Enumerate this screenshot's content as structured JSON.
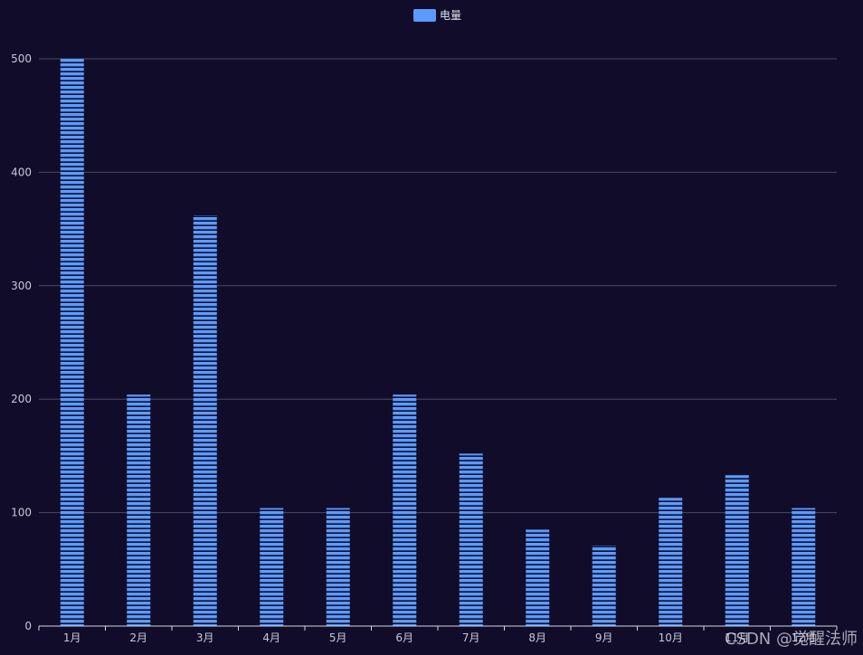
{
  "chart_data": {
    "type": "bar",
    "categories": [
      "1月",
      "2月",
      "3月",
      "4月",
      "5月",
      "6月",
      "7月",
      "8月",
      "9月",
      "10月",
      "11月",
      "12月"
    ],
    "series": [
      {
        "name": "电量",
        "values": [
          500,
          204,
          362,
          104,
          104,
          204,
          152,
          85,
          71,
          113,
          133,
          104
        ]
      }
    ],
    "ylim": [
      0,
      500
    ],
    "yticks": [
      0,
      100,
      200,
      300,
      400,
      500
    ],
    "grid": true,
    "legend_position": "top-center",
    "bar_color": "#5b9bff",
    "bar_stripe_color": "#100c2a",
    "background": "#100c2a"
  },
  "watermark": "CSDN @觉醒法师"
}
